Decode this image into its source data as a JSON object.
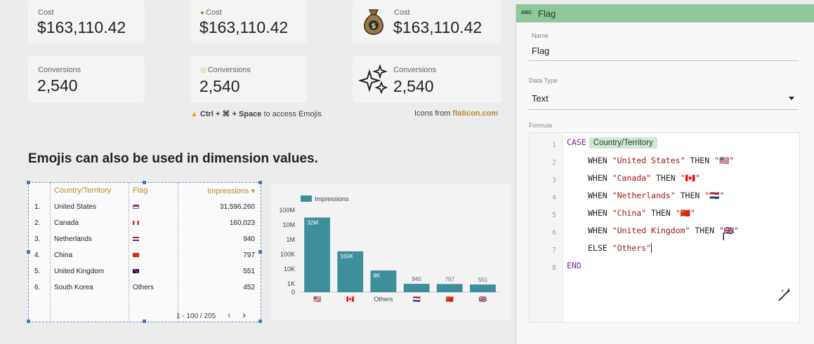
{
  "scorecards": [
    {
      "label": "Cost",
      "value": "$163,110.42"
    },
    {
      "label": "Cost",
      "value": "$163,110.42",
      "label_icon": "money-bag-small"
    },
    {
      "label": "Cost",
      "value": "$163,110.42",
      "icon": "money-bag"
    },
    {
      "label": "Conversions",
      "value": "2,540"
    },
    {
      "label": "Conversions",
      "value": "2,540",
      "label_icon": "bullseye-small"
    },
    {
      "label": "Conversions",
      "value": "2,540",
      "icon": "sparkles"
    }
  ],
  "notes": {
    "shortcut_icon": "warning-icon",
    "shortcut_keys": "Ctrl + ⌘ + Space",
    "shortcut_text": " to access Emojis",
    "icons_prefix": "Icons from ",
    "icons_link": "flaticon.com"
  },
  "heading": "Emojis can also be used in dimension values.",
  "table": {
    "columns": [
      "Country/Territory",
      "Flag",
      "Impressions ▾"
    ],
    "rows": [
      {
        "n": "1.",
        "country": "United States",
        "flag": "🇺🇸",
        "impressions": "31,596,260"
      },
      {
        "n": "2.",
        "country": "Canada",
        "flag": "🇨🇦",
        "impressions": "160,023"
      },
      {
        "n": "3.",
        "country": "Netherlands",
        "flag": "🇳🇱",
        "impressions": "940"
      },
      {
        "n": "4.",
        "country": "China",
        "flag": "🇨🇳",
        "impressions": "797"
      },
      {
        "n": "5.",
        "country": "United Kingdom",
        "flag": "🇬🇧",
        "impressions": "551"
      },
      {
        "n": "6.",
        "country": "South Korea",
        "flag": "Others",
        "impressions": "452"
      }
    ],
    "pagination": "1 - 100 / 205",
    "prev": "‹",
    "next": "›"
  },
  "chart_data": {
    "type": "bar",
    "legend": "Impressions",
    "categories": [
      "🇺🇸",
      "🇨🇦",
      "Others",
      "🇳🇱",
      "🇨🇳",
      "🇬🇧"
    ],
    "values": [
      31596260,
      160023,
      8000,
      940,
      797,
      551
    ],
    "data_labels": [
      "32M",
      "160K",
      "8K",
      "940",
      "797",
      "551"
    ],
    "y_ticks": [
      "100M",
      "10M",
      "1M",
      "100K",
      "10K",
      "1K",
      "0"
    ],
    "scale": "log",
    "color": "#3e8e9c"
  },
  "panel": {
    "type_badge": "ABC",
    "title": "Flag",
    "name_label": "Name",
    "name_value": "Flag",
    "datatype_label": "Data Type",
    "datatype_value": "Text",
    "formula_label": "Formula",
    "line_numbers": [
      "1",
      "2",
      "3",
      "4",
      "5",
      "6",
      "7",
      "8"
    ],
    "formula": {
      "case_kw": "CASE",
      "field_chip": "Country/Territory",
      "when_kw": "WHEN",
      "then_kw": "THEN",
      "else_kw": "ELSE",
      "end_kw": "END",
      "whens": [
        {
          "country": "\"United States\"",
          "emoji": "\"🇺🇸\""
        },
        {
          "country": "\"Canada\"",
          "emoji": "\"🇨🇦\""
        },
        {
          "country": "\"Netherlands\"",
          "emoji": "\"🇳🇱\""
        },
        {
          "country": "\"China\"",
          "emoji": "\"🇨🇳\""
        },
        {
          "country": "\"United Kingdom\"",
          "emoji": "\"🇬🇧\""
        }
      ],
      "else_value": "\"Others\""
    },
    "accent": "#8fc69a"
  }
}
